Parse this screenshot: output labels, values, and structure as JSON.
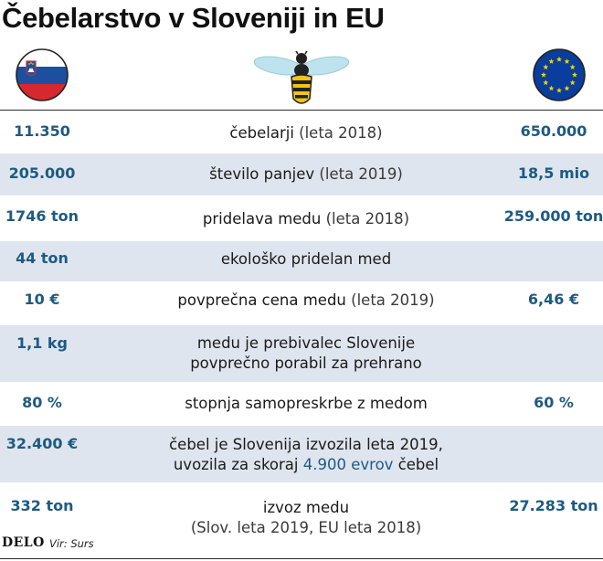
{
  "title": "Čebelarstvo v Sloveniji in EU",
  "icons": {
    "left_flag": "slovenia-flag-icon",
    "center": "bee-icon",
    "right_flag": "eu-flag-icon"
  },
  "colors": {
    "value_blue": "#1e5a82",
    "row_shade": "#dfe5ee",
    "slovenia_white": "#ffffff",
    "slovenia_blue": "#1d4fa0",
    "slovenia_red": "#d7282f",
    "eu_blue": "#0a3d9c",
    "eu_star": "#f5d300",
    "bee_yellow": "#f3c316",
    "bee_wing": "#bfe3ee"
  },
  "rows": [
    {
      "left": "11.350",
      "label": "čebelarji",
      "note": "(leta 2018)",
      "right": "650.000"
    },
    {
      "left": "205.000",
      "label": "število panjev",
      "note": "(leta 2019)",
      "right": "18,5 mio"
    },
    {
      "left": "1746 ton",
      "label": "pridelava medu",
      "note": "(leta 2018)",
      "right": "259.000 ton"
    },
    {
      "left": "44 ton",
      "label": "ekološko pridelan med",
      "note": "",
      "right": ""
    },
    {
      "left": "10 €",
      "label": "povprečna cena medu",
      "note": "(leta 2019)",
      "right": "6,46 €"
    },
    {
      "left": "1,1 kg",
      "label_line1": "medu je prebivalec Slovenije",
      "label_line2": "povprečno porabil za prehrano",
      "right": ""
    },
    {
      "left": "80 %",
      "label": "stopnja samopreskrbe z medom",
      "note": "",
      "right": "60 %"
    },
    {
      "left": "32.400 €",
      "label_line1": "čebel je Slovenija izvozila leta 2019,",
      "label_line2_pre": "uvozila za skoraj",
      "label_line2_hl": "4.900 evrov",
      "label_line2_post": "čebel",
      "right": ""
    },
    {
      "left": "332 ton",
      "label_line1": "izvoz medu",
      "label_line2": "(Slov. leta 2019, EU leta 2018)",
      "right": "27.283 ton"
    }
  ],
  "footer": {
    "brand": "DELO",
    "source": "Vir: Surs"
  }
}
